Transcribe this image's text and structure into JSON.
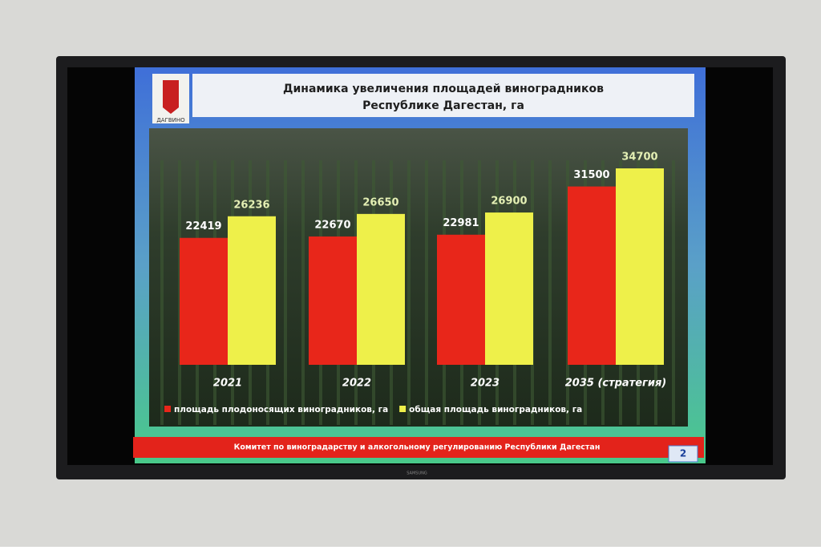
{
  "chart_data": {
    "type": "bar",
    "title": "Динамика увеличения площадей виноградников",
    "subtitle": "Республике Дагестан, га",
    "logo_text": "ДАГВИНО",
    "categories": [
      "2021",
      "2022",
      "2023",
      "2035 (стратегия)"
    ],
    "series": [
      {
        "name": "площадь плодоносящих виноградников, га",
        "color": "#e8261a",
        "label_color": "#ffffff",
        "values": [
          22419,
          22670,
          22981,
          31500
        ]
      },
      {
        "name": "общая площадь виноградников, га",
        "color": "#eef04a",
        "label_color": "#e4efb4",
        "values": [
          26236,
          26650,
          26900,
          34700
        ]
      }
    ],
    "footer": "Комитет по виноградарству и алкогольному регулированию Республики Дагестан",
    "slide_number": "2",
    "brand": "SAMSUNG"
  }
}
